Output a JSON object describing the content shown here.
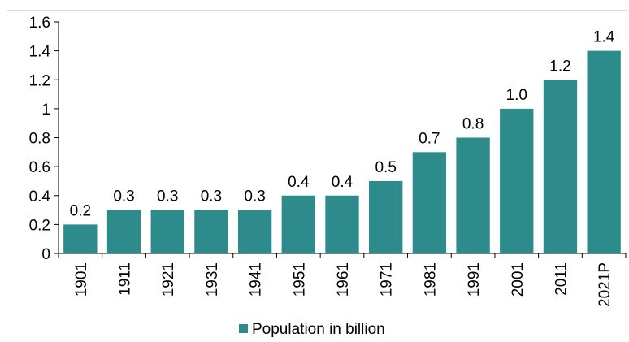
{
  "chart_data": {
    "type": "bar",
    "categories": [
      "1901",
      "1911",
      "1921",
      "1931",
      "1941",
      "1951",
      "1961",
      "1971",
      "1981",
      "1991",
      "2001",
      "2011",
      "2021P"
    ],
    "series": [
      {
        "name": "Population in billion",
        "values": [
          0.2,
          0.3,
          0.3,
          0.3,
          0.3,
          0.4,
          0.4,
          0.5,
          0.7,
          0.8,
          1.0,
          1.2,
          1.4
        ],
        "labels": [
          "0.2",
          "0.3",
          "0.3",
          "0.3",
          "0.3",
          "0.4",
          "0.4",
          "0.5",
          "0.7",
          "0.8",
          "1.0",
          "1.2",
          "1.4"
        ],
        "color": "#2e8b8b"
      }
    ],
    "ylim": [
      0,
      1.6
    ],
    "yticks": [
      "0",
      "0.2",
      "0.4",
      "0.6",
      "0.8",
      "1",
      "1.2",
      "1.4",
      "1.6"
    ],
    "grid": false,
    "legend": "bottom",
    "title": "",
    "xlabel": "",
    "ylabel": ""
  }
}
